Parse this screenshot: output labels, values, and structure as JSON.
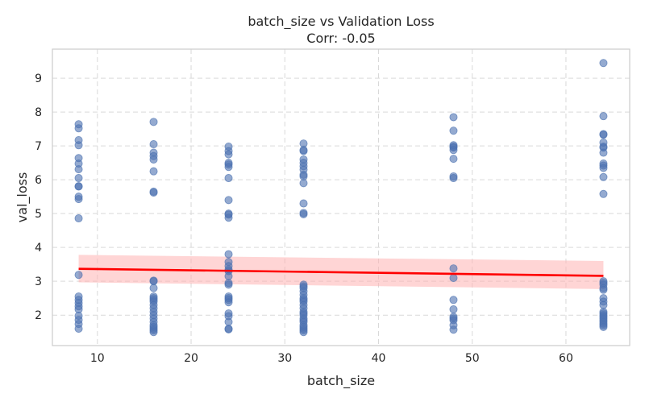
{
  "chart_data": {
    "type": "scatter",
    "title": "batch_size vs Validation Loss",
    "subtitle": "Corr: -0.05",
    "xlabel": "batch_size",
    "ylabel": "val_loss",
    "xlim": [
      5.2,
      66.8
    ],
    "ylim": [
      1.1,
      9.86
    ],
    "xticks": [
      10,
      20,
      30,
      40,
      50,
      60
    ],
    "yticks": [
      2,
      3,
      4,
      5,
      6,
      7,
      8,
      9
    ],
    "grid": true,
    "colors": {
      "points": "#4c72b0",
      "regression": "#ff0000",
      "ci_band": "#ffb3b3"
    },
    "points": [
      {
        "x": 8,
        "y": [
          7.64,
          7.52,
          7.17,
          7.02,
          6.64,
          6.48,
          6.31,
          6.05,
          5.81,
          5.8,
          5.5,
          5.43,
          4.86,
          3.19,
          2.55,
          2.45,
          2.36,
          2.26,
          2.17,
          1.98,
          1.86,
          1.74,
          1.6
        ]
      },
      {
        "x": 16,
        "y": [
          7.71,
          7.05,
          6.8,
          6.7,
          6.6,
          6.25,
          5.65,
          5.62,
          3.02,
          3.0,
          2.8,
          2.55,
          2.5,
          2.45,
          2.4,
          2.3,
          2.2,
          2.1,
          2.0,
          1.9,
          1.8,
          1.7,
          1.65,
          1.6,
          1.55,
          1.5
        ]
      },
      {
        "x": 24,
        "y": [
          6.98,
          6.85,
          6.75,
          6.5,
          6.45,
          6.38,
          6.05,
          5.4,
          5.0,
          4.97,
          4.88,
          3.8,
          3.57,
          3.45,
          3.35,
          3.3,
          3.15,
          2.95,
          2.9,
          2.55,
          2.5,
          2.45,
          2.38,
          2.05,
          1.97,
          1.8,
          1.6,
          1.58
        ]
      },
      {
        "x": 32,
        "y": [
          7.07,
          6.88,
          6.85,
          6.6,
          6.5,
          6.4,
          6.3,
          6.15,
          6.1,
          5.9,
          5.3,
          5.02,
          4.98,
          2.9,
          2.85,
          2.8,
          2.7,
          2.6,
          2.5,
          2.45,
          2.4,
          2.3,
          2.2,
          2.1,
          2.05,
          2.0,
          1.9,
          1.85,
          1.8,
          1.7,
          1.65,
          1.6,
          1.55,
          1.5
        ]
      },
      {
        "x": 48,
        "y": [
          7.85,
          7.45,
          7.02,
          6.98,
          6.95,
          6.88,
          6.62,
          6.1,
          6.05,
          3.38,
          3.1,
          2.45,
          2.17,
          1.95,
          1.9,
          1.85,
          1.7,
          1.57
        ]
      },
      {
        "x": 64,
        "y": [
          9.45,
          7.88,
          7.35,
          7.33,
          7.1,
          6.98,
          6.95,
          6.8,
          6.48,
          6.42,
          6.35,
          6.08,
          5.58,
          3.0,
          2.95,
          2.9,
          2.8,
          2.75,
          2.5,
          2.4,
          2.3,
          2.1,
          2.05,
          2.0,
          1.95,
          1.9,
          1.85,
          1.8,
          1.75,
          1.7,
          1.65
        ]
      }
    ],
    "regression": {
      "x": [
        8,
        64
      ],
      "y": [
        3.37,
        3.16
      ],
      "ci_lower": [
        2.97,
        2.77
      ],
      "ci_upper": [
        3.78,
        3.6
      ]
    }
  }
}
